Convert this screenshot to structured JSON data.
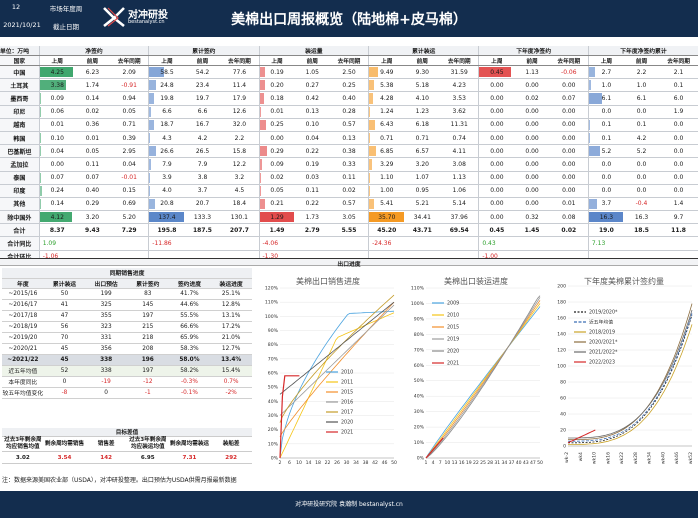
{
  "header": {
    "week": "12",
    "market_year_label": "市场年度周",
    "date": "2021/10/21",
    "period_label": "截止日期",
    "logo_cn": "对冲研投",
    "logo_en": "bestanalyst.cn",
    "title": "美棉出口周报概览（陆地棉+皮马棉）"
  },
  "unit": "单位：万吨",
  "groups": [
    "净签约",
    "累计签约",
    "装运量",
    "累计装运",
    "下年度净签约",
    "下年度净签约累计"
  ],
  "country_label": "国家",
  "col_heads": [
    "上周",
    "前周",
    "去年同期"
  ],
  "rows": [
    {
      "c": "中国",
      "v": [
        [
          "4.25",
          "6.23",
          "2.09"
        ],
        [
          "58.5",
          "54.2",
          "77.6"
        ],
        [
          "0.19",
          "1.05",
          "2.50"
        ],
        [
          "9.49",
          "9.30",
          "31.59"
        ],
        [
          "0.45",
          "1.13",
          "-0.06"
        ],
        [
          "2.7",
          "2.2",
          "2.1"
        ]
      ]
    },
    {
      "c": "土耳其",
      "v": [
        [
          "3.38",
          "1.74",
          "-0.91"
        ],
        [
          "24.8",
          "23.4",
          "11.4"
        ],
        [
          "0.20",
          "0.27",
          "0.25"
        ],
        [
          "5.38",
          "5.18",
          "4.23"
        ],
        [
          "0.00",
          "0.00",
          "0.00"
        ],
        [
          "1.0",
          "1.0",
          "0.1"
        ]
      ]
    },
    {
      "c": "墨西哥",
      "v": [
        [
          "0.09",
          "0.14",
          "0.94"
        ],
        [
          "19.8",
          "19.7",
          "17.9"
        ],
        [
          "0.18",
          "0.42",
          "0.40"
        ],
        [
          "4.28",
          "4.10",
          "3.53"
        ],
        [
          "0.00",
          "0.02",
          "0.07"
        ],
        [
          "6.1",
          "6.1",
          "6.0"
        ]
      ]
    },
    {
      "c": "印尼",
      "v": [
        [
          "0.06",
          "0.02",
          "0.05"
        ],
        [
          "6.6",
          "6.6",
          "12.6"
        ],
        [
          "0.01",
          "0.13",
          "0.28"
        ],
        [
          "1.24",
          "1.23",
          "3.62"
        ],
        [
          "0.00",
          "0.00",
          "0.00"
        ],
        [
          "0.0",
          "0.0",
          "1.9"
        ]
      ]
    },
    {
      "c": "越南",
      "v": [
        [
          "0.01",
          "0.36",
          "0.71"
        ],
        [
          "18.7",
          "16.7",
          "32.0"
        ],
        [
          "0.25",
          "0.10",
          "0.57"
        ],
        [
          "6.43",
          "6.18",
          "11.31"
        ],
        [
          "0.00",
          "0.00",
          "0.00"
        ],
        [
          "0.1",
          "0.1",
          "0.0"
        ]
      ]
    },
    {
      "c": "韩国",
      "v": [
        [
          "0.10",
          "0.01",
          "0.39"
        ],
        [
          "4.3",
          "4.2",
          "2.2"
        ],
        [
          "0.00",
          "0.04",
          "0.13"
        ],
        [
          "0.71",
          "0.71",
          "0.74"
        ],
        [
          "0.00",
          "0.00",
          "0.00"
        ],
        [
          "0.1",
          "4.2",
          "0.0"
        ]
      ]
    },
    {
      "c": "巴基斯坦",
      "v": [
        [
          "0.04",
          "0.05",
          "2.95"
        ],
        [
          "26.6",
          "26.5",
          "15.8"
        ],
        [
          "0.29",
          "0.22",
          "0.38"
        ],
        [
          "6.85",
          "6.57",
          "4.11"
        ],
        [
          "0.00",
          "0.00",
          "0.00"
        ],
        [
          "5.2",
          "5.2",
          "0.0"
        ]
      ]
    },
    {
      "c": "孟加拉",
      "v": [
        [
          "0.00",
          "0.11",
          "0.04"
        ],
        [
          "7.9",
          "7.9",
          "12.2"
        ],
        [
          "0.09",
          "0.19",
          "0.33"
        ],
        [
          "3.29",
          "3.20",
          "3.08"
        ],
        [
          "0.00",
          "0.00",
          "0.00"
        ],
        [
          "0.0",
          "0.0",
          "0.0"
        ]
      ]
    },
    {
      "c": "泰国",
      "v": [
        [
          "0.07",
          "0.07",
          "-0.01"
        ],
        [
          "3.9",
          "3.8",
          "3.2"
        ],
        [
          "0.02",
          "0.03",
          "0.11"
        ],
        [
          "1.10",
          "1.07",
          "1.13"
        ],
        [
          "0.00",
          "0.00",
          "0.00"
        ],
        [
          "0.0",
          "0.0",
          "0.0"
        ]
      ]
    },
    {
      "c": "印度",
      "v": [
        [
          "0.24",
          "0.40",
          "0.15"
        ],
        [
          "4.0",
          "3.7",
          "4.5"
        ],
        [
          "0.05",
          "0.11",
          "0.02"
        ],
        [
          "1.00",
          "0.95",
          "1.06"
        ],
        [
          "0.00",
          "0.00",
          "0.00"
        ],
        [
          "0.0",
          "0.0",
          "0.0"
        ]
      ]
    },
    {
      "c": "其他",
      "v": [
        [
          "0.14",
          "0.29",
          "0.69"
        ],
        [
          "20.8",
          "20.7",
          "18.4"
        ],
        [
          "0.21",
          "0.22",
          "0.57"
        ],
        [
          "5.41",
          "5.21",
          "5.14"
        ],
        [
          "0.00",
          "0.00",
          "0.01"
        ],
        [
          "3.7",
          "-0.4",
          "1.4"
        ]
      ]
    },
    {
      "c": "除中国外",
      "v": [
        [
          "4.12",
          "3.20",
          "5.20"
        ],
        [
          "137.4",
          "133.3",
          "130.1"
        ],
        [
          "1.29",
          "1.73",
          "3.05"
        ],
        [
          "35.70",
          "34.41",
          "37.96"
        ],
        [
          "0.00",
          "0.32",
          "0.08"
        ],
        [
          "16.3",
          "16.3",
          "9.7"
        ]
      ]
    }
  ],
  "total": {
    "c": "合计",
    "v": [
      [
        "8.37",
        "9.43",
        "7.29"
      ],
      [
        "195.8",
        "187.5",
        "207.7"
      ],
      [
        "1.49",
        "2.79",
        "5.55"
      ],
      [
        "45.20",
        "43.71",
        "69.54"
      ],
      [
        "0.45",
        "1.45",
        "0.02"
      ],
      [
        "19.0",
        "18.5",
        "11.8"
      ]
    ]
  },
  "total_change": {
    "c": "合计同比",
    "v": [
      "1.09",
      "-11.86",
      "-4.06",
      "-24.36",
      "0.43",
      "7.13"
    ]
  },
  "total_wow": {
    "c": "合计环比",
    "v": [
      "-1.06",
      "",
      "-1.30",
      "",
      "-1.00",
      ""
    ]
  },
  "progress": {
    "section_title": "出口进度",
    "subtitle": "同期销售进度",
    "cols": [
      "年度",
      "累计装运",
      "出口预估",
      "累计签约",
      "签约进度",
      "装运进度"
    ],
    "rows": [
      [
        "~2015/16",
        "50",
        "199",
        "83",
        "41.7%",
        "25.1%"
      ],
      [
        "~2016/17",
        "41",
        "325",
        "145",
        "44.6%",
        "12.8%"
      ],
      [
        "~2017/18",
        "47",
        "355",
        "197",
        "55.5%",
        "13.1%"
      ],
      [
        "~2018/19",
        "56",
        "323",
        "215",
        "66.6%",
        "17.2%"
      ],
      [
        "~2019/20",
        "70",
        "331",
        "218",
        "65.9%",
        "21.0%"
      ],
      [
        "~2020/21",
        "45",
        "356",
        "208",
        "58.3%",
        "12.7%"
      ],
      [
        "~2021/22",
        "45",
        "338",
        "196",
        "58.0%",
        "13.4%"
      ],
      [
        "近五年均值",
        "52",
        "338",
        "197",
        "58.2%",
        "15.4%"
      ],
      [
        "本年度同比",
        "0",
        "-19",
        "-12",
        "-0.3%",
        "0.7%"
      ],
      [
        "较五年均值变化",
        "-8",
        "0",
        "-1",
        "-0.1%",
        "-2%"
      ]
    ]
  },
  "target": {
    "title": "目标差值",
    "h": [
      "过去3年剩余周均应销售均值",
      "剩余周均需销售",
      "销售差",
      "过去3年剩余周均应装运均值",
      "剩余周均需装运",
      "装船差"
    ],
    "v": [
      "3.02",
      "3.54",
      "142",
      "6.95",
      "7.31",
      "292"
    ]
  },
  "note": "注：数据来源美国农业部（USDA），对冲研投整理。出口预估为USDA供需月报最新数据",
  "footer": "对冲研投研究院 袁瀚制 bestanalyst.cn",
  "charts": {
    "sales": {
      "title": "美棉出口销售进度",
      "yticks": [
        "0%",
        "10%",
        "20%",
        "30%",
        "40%",
        "50%",
        "60%",
        "70%",
        "80%",
        "90%",
        "100%",
        "110%",
        "120%"
      ],
      "xticks": [
        "2",
        "6",
        "10",
        "14",
        "18",
        "22",
        "26",
        "30",
        "34",
        "38",
        "42",
        "46",
        "50"
      ],
      "legend": [
        "2010",
        "2011",
        "2015",
        "2016",
        "2017",
        "2020",
        "2021"
      ]
    },
    "ship": {
      "title": "美棉出口装运进度",
      "yticks": [
        "0%",
        "10%",
        "20%",
        "30%",
        "40%",
        "50%",
        "60%",
        "70%",
        "80%",
        "90%",
        "100%",
        "110%"
      ],
      "xticks": "1 4 7 10 13 16 19 22 25 28 31 34 37 40 43 47 50",
      "legend": [
        "2009",
        "2010",
        "2015",
        "2019",
        "2020",
        "2021"
      ]
    },
    "nextyr": {
      "title": "下年度美棉累计签约量",
      "yticks": [
        "0",
        "20",
        "40",
        "60",
        "80",
        "100",
        "120",
        "140",
        "160",
        "180",
        "200"
      ],
      "xticks": [
        "wk-2",
        "wk4",
        "wk10",
        "wk16",
        "wk22",
        "wk28",
        "wk34",
        "wk40",
        "wk46",
        "wk52"
      ],
      "legend": [
        "2019/2020*",
        "近五年均值",
        "2018/2019",
        "2020/2021*",
        "2021/2022*",
        "2022/2023"
      ]
    }
  },
  "colors": {
    "header": "#132d4e",
    "green": "#3ba56a",
    "red": "#e24b4b",
    "orange": "#f59a23",
    "blue": "#5a86c9"
  }
}
